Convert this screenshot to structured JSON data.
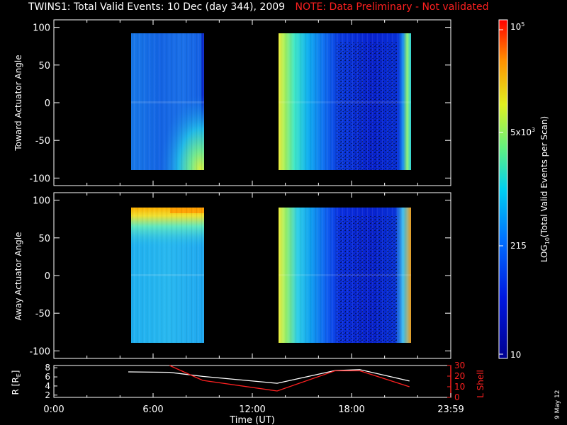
{
  "header": {
    "title": "TWINS1: Total Valid Events: 10 Dec (day 344), 2009",
    "note": "NOTE: Data Preliminary - Not validated"
  },
  "colors": {
    "note": "#ff2020",
    "background": "#000000",
    "axes": "#ffffff",
    "r_line": "#ffffff",
    "lshell_line": "#ff2020"
  },
  "chart_data": [
    {
      "type": "heatmap",
      "ylabel": "Toward Actuator Angle",
      "ylim": [
        -110,
        110
      ],
      "yticks": [
        100,
        50,
        0,
        -50,
        -100
      ],
      "xlim_hours": [
        0,
        24
      ],
      "data_blocks": [
        {
          "start": "04:30",
          "end": "09:00",
          "level": "low (~215)",
          "feature": "rising to ~5x10^3 near -70..-90 deg after 07:30"
        },
        {
          "start": "13:30",
          "end": "21:30",
          "level": "~5x10^3 at start, low/near 10 at 17:00-21:00",
          "feature": "edge brightening at 21:00"
        }
      ]
    },
    {
      "type": "heatmap",
      "ylabel": "Away Actuator Angle",
      "ylim": [
        -110,
        110
      ],
      "yticks": [
        100,
        50,
        0,
        -50,
        -100
      ],
      "xlim_hours": [
        0,
        24
      ],
      "data_blocks": [
        {
          "start": "04:30",
          "end": "09:00",
          "level": "~215-1000",
          "feature": "peak ~10^5 near +90 deg after 07:00"
        },
        {
          "start": "13:30",
          "end": "21:30",
          "level": "~5x10^3 at start, low at 17:00-21:00",
          "feature": "peak near +90 deg at 21:00"
        }
      ]
    },
    {
      "type": "line",
      "xlabel": "Time (UT)",
      "ylabel": "R [RE]",
      "ylabel2": "L Shell",
      "ylim": [
        1.5,
        8.5
      ],
      "y2lim": [
        0,
        30
      ],
      "yticks": [
        "8",
        "6",
        "4",
        "2"
      ],
      "y2ticks": [
        "30",
        "20",
        "10",
        "0"
      ],
      "x": [
        "04:30",
        "07:00",
        "09:00",
        "13:30",
        "17:00",
        "18:30",
        "21:30"
      ],
      "series": [
        {
          "values_R": [
            7.1,
            7.0,
            6.1,
            4.6,
            7.4,
            7.6,
            5.1
          ]
        },
        {
          "values_L": [
            null,
            33,
            16,
            6,
            25,
            25,
            10
          ]
        }
      ]
    }
  ],
  "colorbar": {
    "label": "LOG10(Total Valid Events per Scan)",
    "label_main": "LOG",
    "label_sub": "10",
    "label_tail": "(Total Valid Events per Scan)",
    "ticks": [
      "10",
      "215",
      "5x10^3",
      "10^5"
    ],
    "tick_215": "215",
    "tick_10": "10",
    "tick_5e3_base": "5x10",
    "tick_5e3_exp": "3",
    "tick_1e5_base": "10",
    "tick_1e5_exp": "5"
  },
  "xaxis": {
    "ticks": [
      "0:00",
      "6:00",
      "12:00",
      "18:00",
      "23:59"
    ],
    "label": "Time (UT)"
  },
  "panel3": {
    "r_label": "R [R",
    "r_sub": "E",
    "r_close": "]",
    "lshell_label": "L Shell"
  },
  "stamp": "9 May 12"
}
